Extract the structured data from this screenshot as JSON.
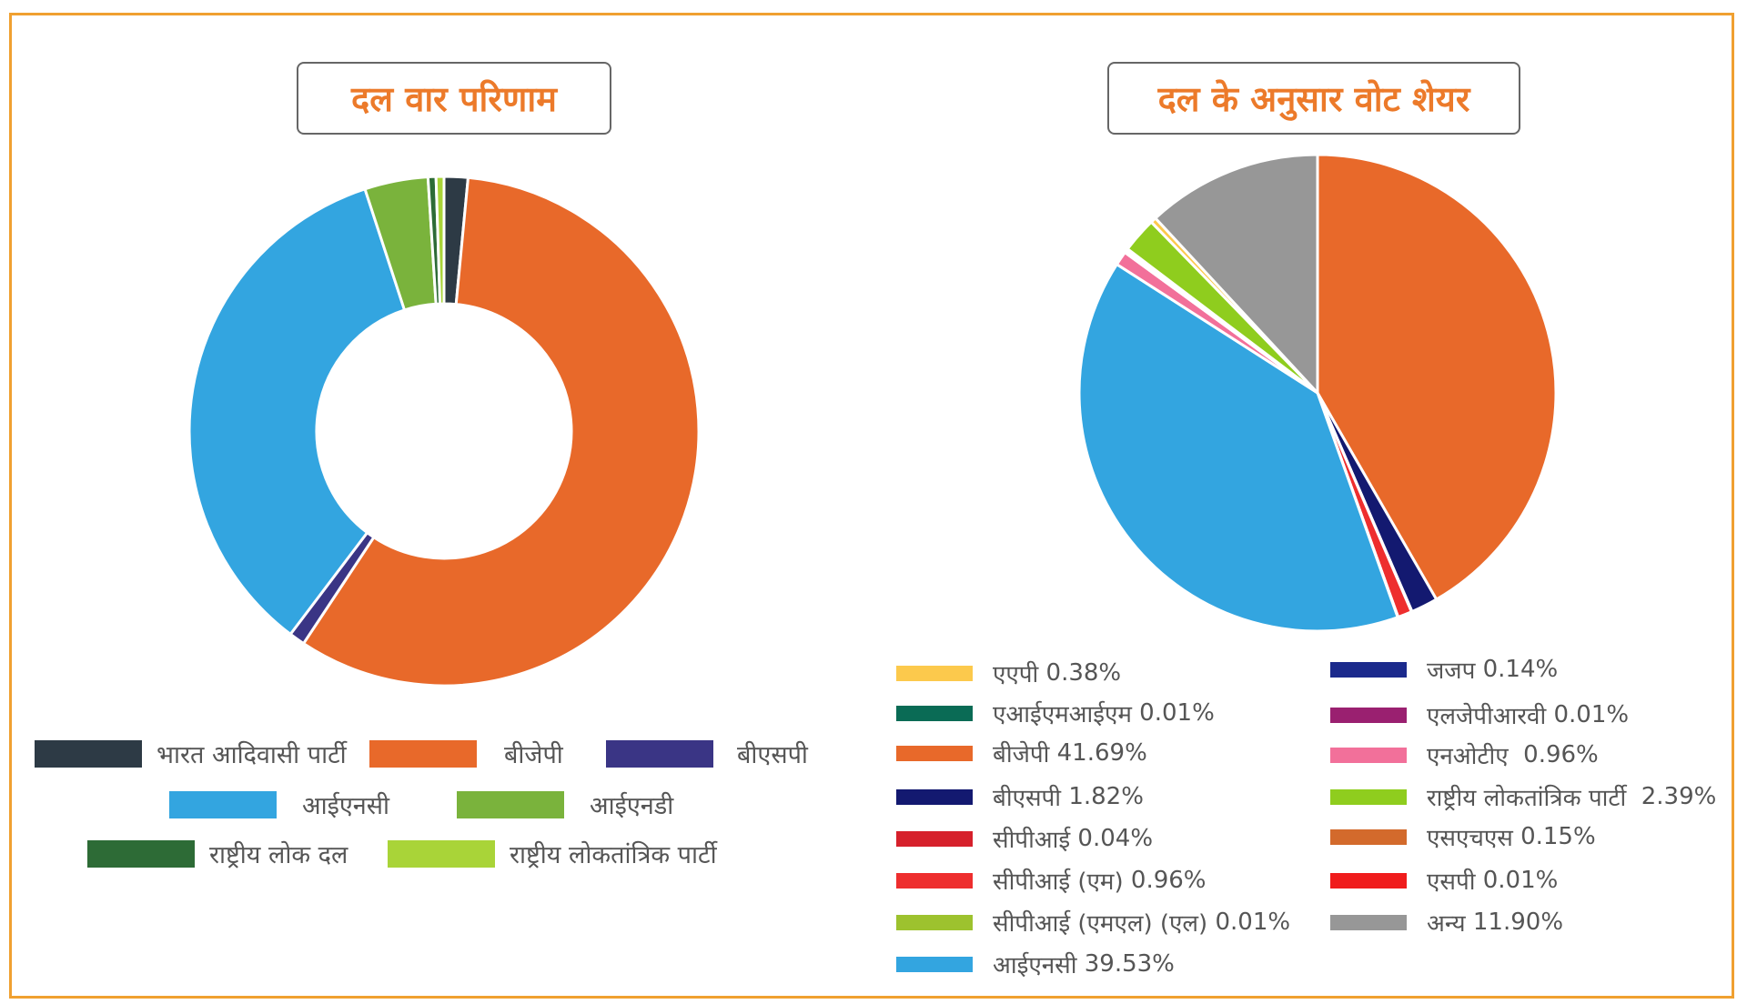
{
  "colors": {
    "frame": "#f0a030",
    "title_text": "#ec7a2a",
    "donut": {
      "bharat_adivasi": "#2d3a45",
      "bjp": "#e8692a",
      "bsp": "#3a3585",
      "inc": "#33a5e0",
      "ind": "#7ab33c",
      "rld": "#2d6b36",
      "rlp": "#a9d438"
    },
    "pie": {
      "aap": "#fcc94c",
      "aimim": "#0a6b55",
      "bjp": "#e8692a",
      "bsp": "#131970",
      "cpi": "#d6202b",
      "cpim": "#ee2e2e",
      "cpiml": "#9dc22e",
      "inc": "#33a5e0",
      "jjp": "#1b2a8c",
      "ljprv": "#9a2070",
      "nota": "#f2709a",
      "rlp": "#8fcd1e",
      "shs": "#d36a2c",
      "sp": "#f01c1c",
      "others": "#979797"
    }
  },
  "chart_data": [
    {
      "type": "pie",
      "variant": "donut",
      "title": "दल वार परिणाम",
      "categories": [
        "भारत आदिवासी पार्टी",
        "बीजेपी",
        "बीएसपी",
        "आईएनसी",
        "आईएनडी",
        "राष्ट्रीय लोक दल",
        "राष्ट्रीय लोकतांत्रिक पार्टी"
      ],
      "keys": [
        "bharat_adivasi",
        "bjp",
        "bsp",
        "inc",
        "ind",
        "rld",
        "rlp"
      ],
      "values": [
        3,
        115,
        2,
        69,
        8,
        1,
        1
      ],
      "legend": "bottom"
    },
    {
      "type": "pie",
      "title": "दल के अनुसार वोट शेयर",
      "unit": "%",
      "categories": [
        "एएपी",
        "एआईएमआईएम",
        "बीजेपी",
        "बीएसपी",
        "सीपीआई",
        "सीपीआई (एम)",
        "सीपीआई (एमएल) (एल)",
        "आईएनसी",
        "जजप",
        "एलजेपीआरवी",
        "एनओटीए",
        "राष्ट्रीय लोकतांत्रिक पार्टी",
        "एसएचएस",
        "एसपी",
        "अन्य"
      ],
      "keys": [
        "aap",
        "aimim",
        "bjp",
        "bsp",
        "cpi",
        "cpim",
        "cpiml",
        "inc",
        "jjp",
        "ljprv",
        "nota",
        "rlp",
        "shs",
        "sp",
        "others"
      ],
      "values": [
        0.38,
        0.01,
        41.69,
        1.82,
        0.04,
        0.96,
        0.01,
        39.53,
        0.14,
        0.01,
        0.96,
        2.39,
        0.15,
        0.01,
        11.9
      ],
      "value_labels": [
        "0.38%",
        "0.01%",
        "41.69%",
        "1.82%",
        "0.04%",
        "0.96%",
        "0.01%",
        "39.53%",
        "0.14%",
        "0.01%",
        "0.96%",
        "2.39%",
        "0.15%",
        "0.01%",
        "11.90%"
      ],
      "legend": "bottom"
    }
  ]
}
